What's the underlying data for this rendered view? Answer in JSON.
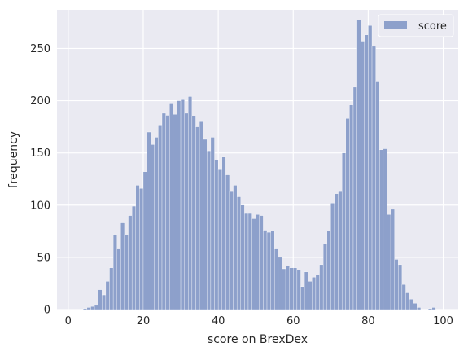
{
  "chart_data": {
    "type": "bar",
    "subtype": "histogram",
    "xlabel": "score on BrexDex",
    "ylabel": "frequency",
    "xlim": [
      -3,
      104
    ],
    "ylim": [
      0,
      287
    ],
    "xticks": [
      0,
      20,
      40,
      60,
      80,
      100
    ],
    "yticks": [
      0,
      50,
      100,
      150,
      200,
      250
    ],
    "grid": true,
    "legend_position": "top-right",
    "bin_width": 1,
    "series": [
      {
        "name": "score",
        "color": "#8da0cb",
        "bin_start": 0,
        "values": [
          0,
          0,
          0,
          0,
          1,
          2,
          3,
          4,
          19,
          14,
          27,
          40,
          72,
          58,
          83,
          72,
          90,
          99,
          119,
          116,
          132,
          170,
          158,
          165,
          176,
          188,
          186,
          197,
          187,
          200,
          201,
          188,
          204,
          185,
          175,
          180,
          163,
          152,
          165,
          143,
          134,
          146,
          129,
          113,
          119,
          108,
          100,
          92,
          92,
          87,
          91,
          90,
          76,
          74,
          75,
          58,
          50,
          39,
          42,
          40,
          40,
          38,
          22,
          36,
          27,
          31,
          33,
          43,
          63,
          75,
          102,
          111,
          113,
          150,
          183,
          196,
          213,
          277,
          257,
          263,
          272,
          252,
          218,
          153,
          154,
          91,
          96,
          48,
          43,
          24,
          16,
          10,
          6,
          2,
          0,
          0,
          1,
          2,
          0,
          0
        ]
      }
    ]
  }
}
